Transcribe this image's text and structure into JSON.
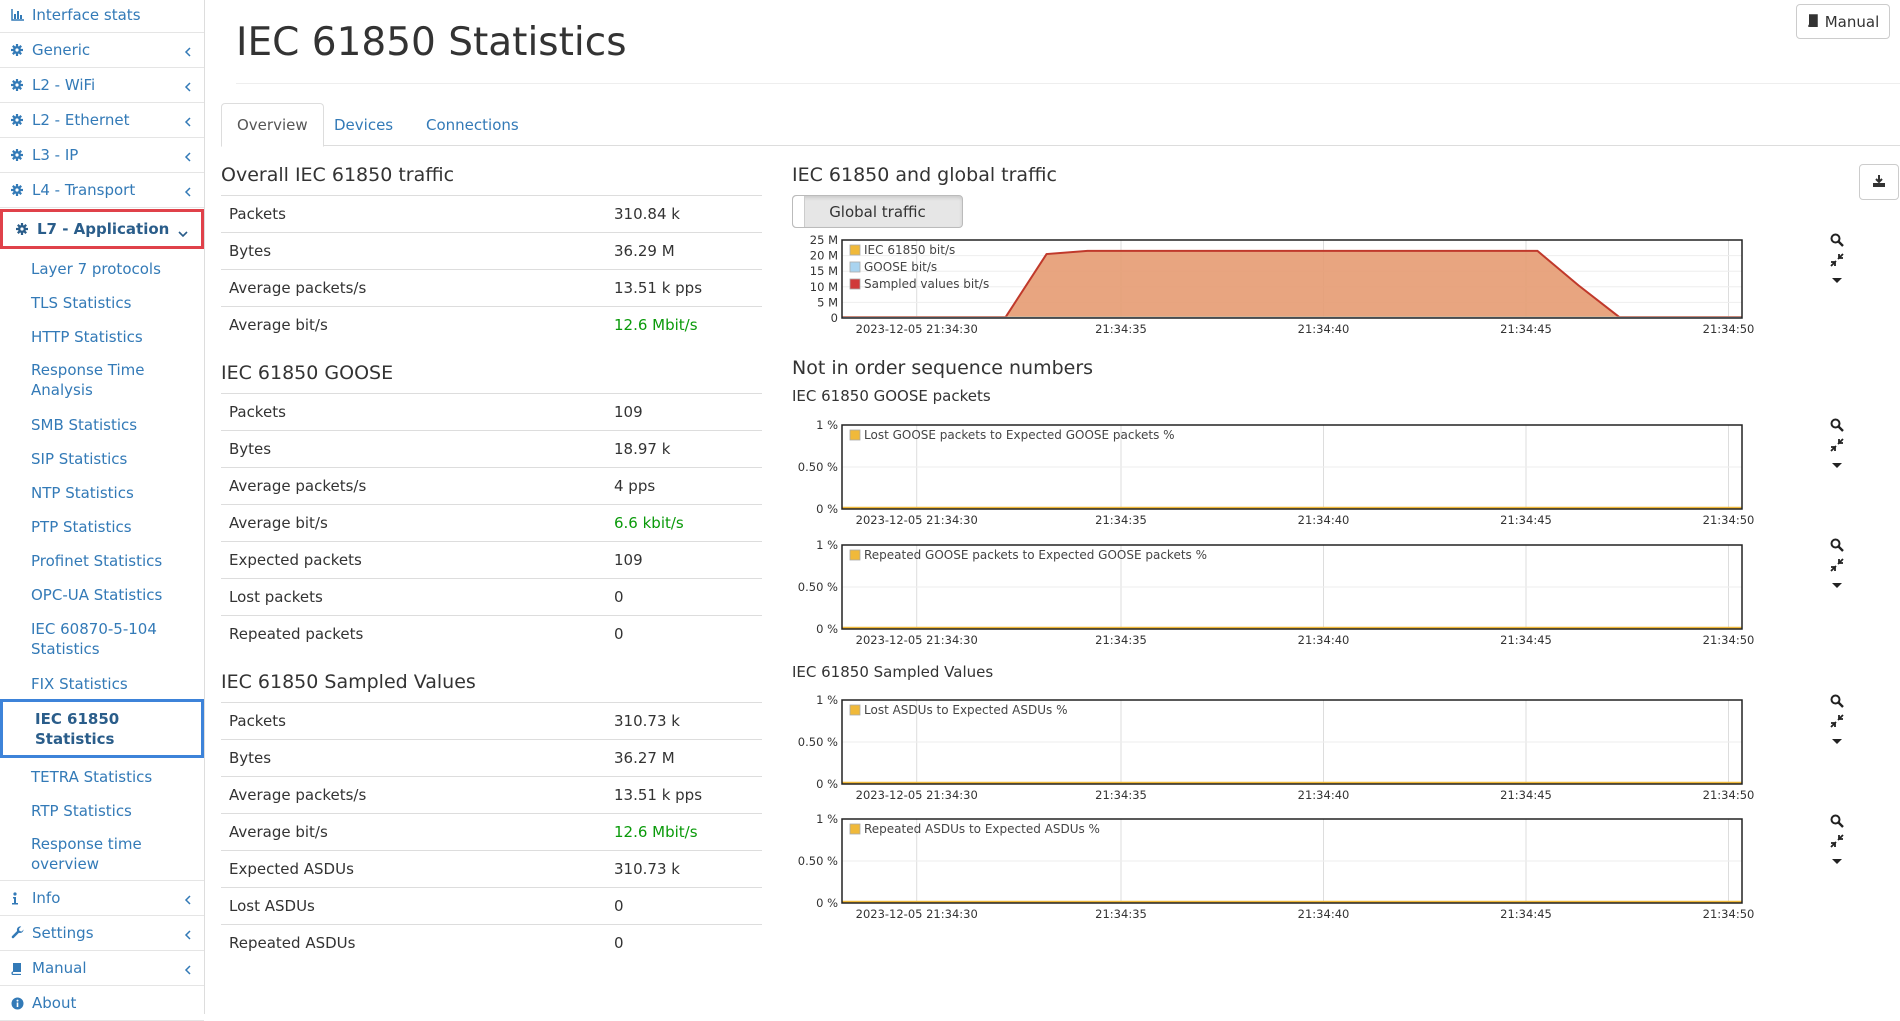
{
  "sidebar": {
    "top_items": [
      {
        "label": "Interface stats",
        "icon": "bar-chart-icon"
      },
      {
        "label": "Generic",
        "icon": "gear-icon"
      },
      {
        "label": "L2 - WiFi",
        "icon": "gear-icon"
      },
      {
        "label": "L2 - Ethernet",
        "icon": "gear-icon"
      },
      {
        "label": "L3 - IP",
        "icon": "gear-icon"
      },
      {
        "label": "L4 - Transport",
        "icon": "gear-icon"
      }
    ],
    "active_group": {
      "label": "L7 - Application",
      "icon": "gear-icon"
    },
    "sub_items": [
      "Layer 7 protocols",
      "TLS Statistics",
      "HTTP Statistics",
      "Response Time Analysis",
      "SMB Statistics",
      "SIP Statistics",
      "NTP Statistics",
      "PTP Statistics",
      "Profinet Statistics",
      "OPC-UA Statistics",
      "IEC 60870-5-104 Statistics",
      "FIX Statistics",
      "IEC 61850 Statistics",
      "TETRA Statistics",
      "RTP Statistics",
      "Response time overview"
    ],
    "selected_sub": "IEC 61850 Statistics",
    "bottom_items": [
      {
        "label": "Info",
        "icon": "info-icon"
      },
      {
        "label": "Settings",
        "icon": "wrench-icon"
      },
      {
        "label": "Manual",
        "icon": "book-icon"
      },
      {
        "label": "About",
        "icon": "info-circle-icon"
      }
    ]
  },
  "header": {
    "title": "IEC 61850 Statistics",
    "manual_button": "Manual"
  },
  "tabs": [
    "Overview",
    "Devices",
    "Connections"
  ],
  "active_tab": "Overview",
  "overall": {
    "heading": "Overall IEC 61850 traffic",
    "rows": [
      {
        "label": "Packets",
        "value": "310.84 k"
      },
      {
        "label": "Bytes",
        "value": "36.29 M"
      },
      {
        "label": "Average packets/s",
        "value": "13.51 k pps"
      },
      {
        "label": "Average bit/s",
        "value": "12.6 Mbit/s",
        "green": true
      }
    ]
  },
  "goose": {
    "heading": "IEC 61850 GOOSE",
    "rows": [
      {
        "label": "Packets",
        "value": "109"
      },
      {
        "label": "Bytes",
        "value": "18.97 k"
      },
      {
        "label": "Average packets/s",
        "value": "4 pps"
      },
      {
        "label": "Average bit/s",
        "value": "6.6 kbit/s",
        "green": true
      },
      {
        "label": "Expected packets",
        "value": "109"
      },
      {
        "label": "Lost packets",
        "value": "0"
      },
      {
        "label": "Repeated packets",
        "value": "0"
      }
    ]
  },
  "sampled": {
    "heading": "IEC 61850 Sampled Values",
    "rows": [
      {
        "label": "Packets",
        "value": "310.73 k"
      },
      {
        "label": "Bytes",
        "value": "36.27 M"
      },
      {
        "label": "Average packets/s",
        "value": "13.51 k pps"
      },
      {
        "label": "Average bit/s",
        "value": "12.6 Mbit/s",
        "green": true
      },
      {
        "label": "Expected ASDUs",
        "value": "310.73 k"
      },
      {
        "label": "Lost ASDUs",
        "value": "0"
      },
      {
        "label": "Repeated ASDUs",
        "value": "0"
      }
    ]
  },
  "right": {
    "global_heading": "IEC 61850 and global traffic",
    "global_button": "Global traffic",
    "nios_heading": "Not in order sequence numbers",
    "goose_heading": "IEC 61850 GOOSE packets",
    "sv_heading": "IEC 61850 Sampled Values"
  },
  "colors": {
    "iec": "#f0b93a",
    "goose": "#a9d4f0",
    "sv": "#d03a3a",
    "sv_fill": "#e69b72",
    "green": "#0a9a0a"
  },
  "chart_data": [
    {
      "type": "area",
      "title": "IEC 61850 and global traffic",
      "x_ticks": [
        "2023-12-05 21:34:30",
        "21:34:35",
        "21:34:40",
        "21:34:45",
        "21:34:50"
      ],
      "y_ticks": [
        "0",
        "5 M",
        "10 M",
        "15 M",
        "20 M",
        "25 M"
      ],
      "ylim": [
        0,
        25
      ],
      "x": [
        "21:34:28",
        "21:34:29",
        "21:34:30",
        "21:34:31",
        "21:34:32",
        "21:34:33",
        "21:34:34",
        "21:34:35",
        "21:34:36",
        "21:34:37",
        "21:34:38",
        "21:34:39",
        "21:34:40",
        "21:34:41",
        "21:34:42",
        "21:34:43",
        "21:34:44",
        "21:34:45",
        "21:34:46",
        "21:34:47",
        "21:34:48",
        "21:34:49",
        "21:34:50"
      ],
      "series": [
        {
          "name": "IEC 61850 bit/s",
          "values": [
            0,
            0,
            0,
            0,
            0,
            0,
            0,
            0,
            0,
            0,
            0,
            0,
            0,
            0,
            0,
            0,
            0,
            0,
            0,
            0,
            0,
            0,
            0
          ]
        },
        {
          "name": "GOOSE bit/s",
          "values": [
            0,
            0,
            0,
            0,
            0,
            0,
            0,
            0,
            0,
            0,
            0,
            0,
            0,
            0,
            0,
            0,
            0,
            0,
            0,
            0,
            0,
            0,
            0
          ]
        },
        {
          "name": "Sampled values bit/s",
          "values": [
            0.3,
            0.3,
            0.3,
            0.3,
            0.3,
            20.5,
            21.5,
            21.5,
            21.5,
            21.5,
            21.5,
            21.5,
            21.5,
            21.5,
            21.5,
            21.5,
            21.5,
            21.5,
            10.5,
            0.3,
            0.3,
            0.3,
            0.3
          ]
        }
      ],
      "legend": "top-left"
    },
    {
      "type": "line",
      "title": "IEC 61850 GOOSE packets",
      "x_ticks": [
        "2023-12-05 21:34:30",
        "21:34:35",
        "21:34:40",
        "21:34:45",
        "21:34:50"
      ],
      "y_ticks": [
        "0 %",
        "0.50 %",
        "1 %"
      ],
      "ylim": [
        0,
        1
      ],
      "series": [
        {
          "name": "Lost GOOSE packets to Expected GOOSE packets %",
          "values": [
            0,
            0,
            0,
            0,
            0
          ]
        }
      ]
    },
    {
      "type": "line",
      "title": "",
      "x_ticks": [
        "2023-12-05 21:34:30",
        "21:34:35",
        "21:34:40",
        "21:34:45",
        "21:34:50"
      ],
      "y_ticks": [
        "0 %",
        "0.50 %",
        "1 %"
      ],
      "ylim": [
        0,
        1
      ],
      "series": [
        {
          "name": "Repeated GOOSE packets to Expected GOOSE packets %",
          "values": [
            0,
            0,
            0,
            0,
            0
          ]
        }
      ]
    },
    {
      "type": "line",
      "title": "IEC 61850 Sampled Values",
      "x_ticks": [
        "2023-12-05 21:34:30",
        "21:34:35",
        "21:34:40",
        "21:34:45",
        "21:34:50"
      ],
      "y_ticks": [
        "0 %",
        "0.50 %",
        "1 %"
      ],
      "ylim": [
        0,
        1
      ],
      "series": [
        {
          "name": "Lost ASDUs to Expected ASDUs %",
          "values": [
            0,
            0,
            0,
            0,
            0
          ]
        }
      ]
    },
    {
      "type": "line",
      "title": "",
      "x_ticks": [
        "2023-12-05 21:34:30",
        "21:34:35",
        "21:34:40",
        "21:34:45",
        "21:34:50"
      ],
      "y_ticks": [
        "0 %",
        "0.50 %",
        "1 %"
      ],
      "ylim": [
        0,
        1
      ],
      "series": [
        {
          "name": "Repeated ASDUs to Expected ASDUs %",
          "values": [
            0,
            0,
            0,
            0,
            0
          ]
        }
      ]
    }
  ]
}
